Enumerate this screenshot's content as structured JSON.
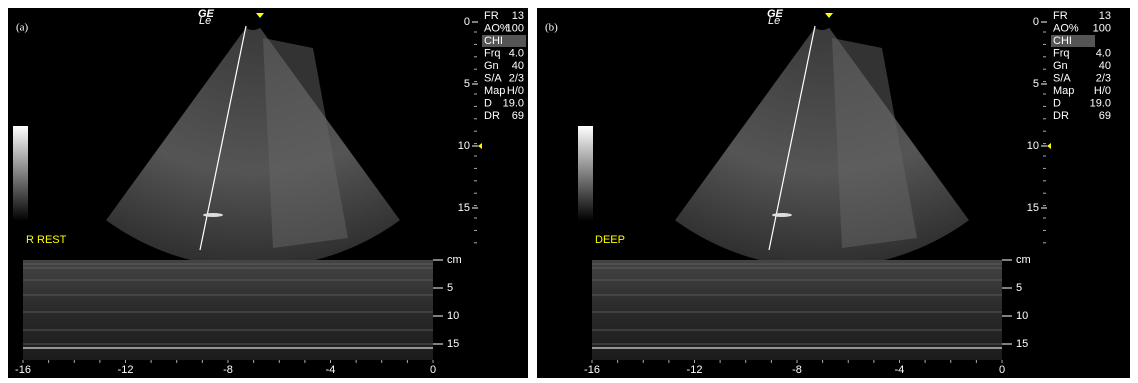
{
  "panels": [
    {
      "label": "(a)",
      "logo": "GE",
      "logo_sub": "Le",
      "params": [
        {
          "name": "FR",
          "value": "13"
        },
        {
          "name": "AO%",
          "value": "100"
        },
        {
          "name": "CHI"
        },
        {
          "name": "Frq",
          "value": "4.0"
        },
        {
          "name": "Gn",
          "value": "40"
        },
        {
          "name": "S/A",
          "value": "2/3"
        },
        {
          "name": "Map",
          "value": "H/0"
        },
        {
          "name": "D",
          "value": "19.0"
        },
        {
          "name": "DR",
          "value": "69"
        }
      ],
      "depth_ticks": [
        "0",
        "5",
        "10",
        "15"
      ],
      "mode_label": "R REST",
      "mmode_unit": "cm",
      "mmode_ticks": [
        "5",
        "10",
        "15"
      ],
      "time_ticks": [
        "-16",
        "-12",
        "-8",
        "-4",
        "0"
      ]
    },
    {
      "label": "(b)",
      "logo": "GE",
      "logo_sub": "Le",
      "params": [
        {
          "name": "FR",
          "value": "13"
        },
        {
          "name": "AO%",
          "value": "100"
        },
        {
          "name": "CHI"
        },
        {
          "name": "Frq",
          "value": "4.0"
        },
        {
          "name": "Gn",
          "value": "40"
        },
        {
          "name": "S/A",
          "value": "2/3"
        },
        {
          "name": "Map",
          "value": "H/0"
        },
        {
          "name": "D",
          "value": "19.0"
        },
        {
          "name": "DR",
          "value": "69"
        }
      ],
      "depth_ticks": [
        "0",
        "5",
        "10",
        "15"
      ],
      "mode_label": "DEEP",
      "mmode_unit": "cm",
      "mmode_ticks": [
        "5",
        "10",
        "15"
      ],
      "time_ticks": [
        "-16",
        "-12",
        "-8",
        "-4",
        "0"
      ]
    }
  ]
}
